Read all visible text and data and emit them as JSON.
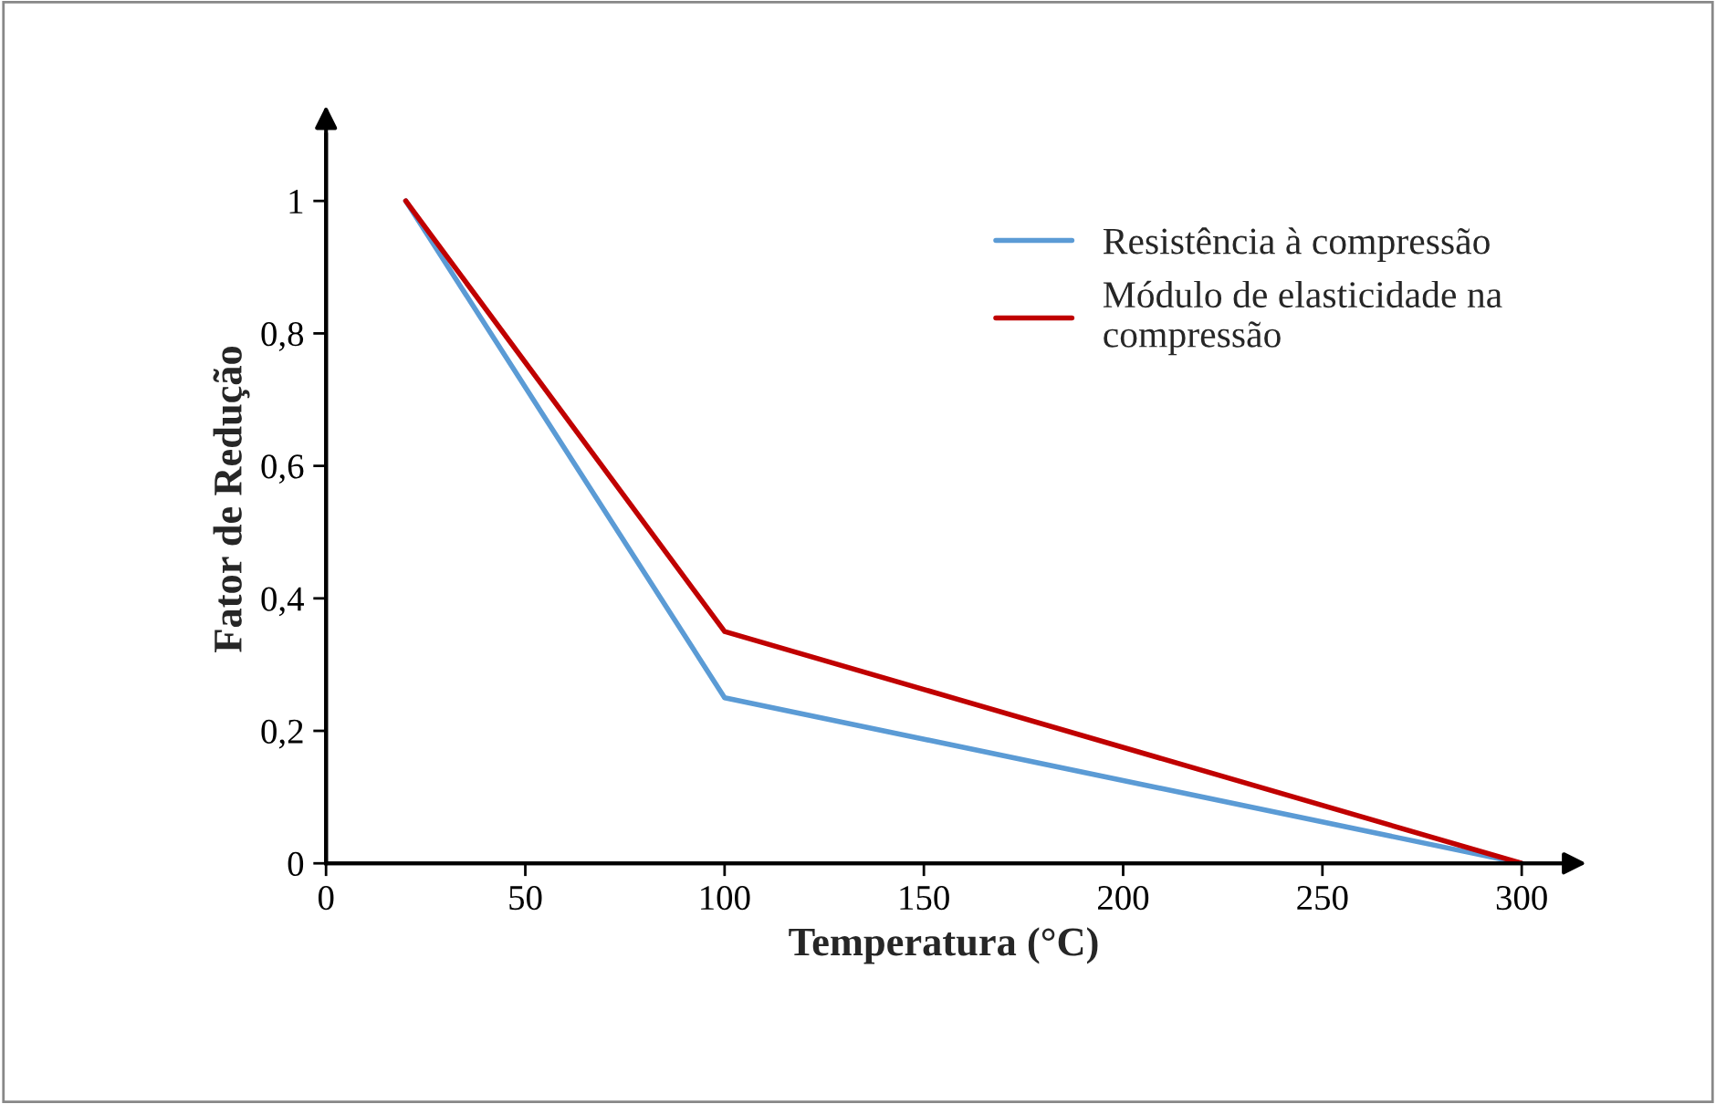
{
  "chart_data": {
    "type": "line",
    "xlabel": "Temperatura (°C)",
    "ylabel": "Fator de Redução",
    "x": [
      20,
      100,
      300
    ],
    "series": [
      {
        "name": "Resistência à compressão",
        "color": "#5b9bd5",
        "values": [
          1,
          0.25,
          0
        ]
      },
      {
        "name": "Módulo de elasticidade na\ncompressão",
        "color": "#c00000",
        "values": [
          1,
          0.35,
          0
        ]
      }
    ],
    "xlim": [
      0,
      310
    ],
    "xticks": [
      0,
      50,
      100,
      150,
      200,
      250,
      300
    ],
    "ylim": [
      0,
      1.1
    ],
    "yticks": [
      0,
      {
        "value": 0.2,
        "label": "0,2"
      },
      {
        "value": 0.4,
        "label": "0,4"
      },
      {
        "value": 0.6,
        "label": "0,6"
      },
      {
        "value": 0.8,
        "label": "0,8"
      },
      1
    ],
    "grid": false,
    "legend": "top right",
    "marker": "none",
    "line_style": "solid"
  }
}
